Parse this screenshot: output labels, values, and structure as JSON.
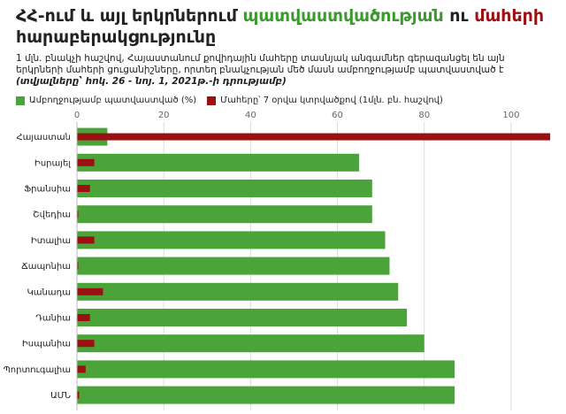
{
  "header": {
    "title_part1": "ՀՀ-ում և այլ երկրներում ",
    "title_green": "պատվաստվածության",
    "title_part2": " ու ",
    "title_red": "մահերի",
    "title_part3": "հարաբերակցությունը",
    "description": "1 մլն. բնակչի հաշվով, Հայաստանում քովիդային մահերը տասնյակ անգամներ գերազանցել են այն երկրների մահերի ցուցանիշները, որտեղ բնակչության մեծ մասն ամբողջությամբ պատվաստված է ",
    "source": "(տվյալները՝ հոկ. 26 - նոյ. 1, 2021թ.-ի դրությամբ)"
  },
  "colors": {
    "green": "#4aa439",
    "red": "#9b1010",
    "title_green": "#3a9a2e",
    "title_red": "#9b1010"
  },
  "chart_data": {
    "type": "bar",
    "orientation": "horizontal",
    "xlim": [
      0,
      110
    ],
    "ticks": [
      0,
      20,
      40,
      60,
      80,
      100
    ],
    "grid": true,
    "legend_position": "top-left",
    "categories": [
      "Հայաստան",
      "Իսրայել",
      "Ֆրանսիա",
      "Շվեդիա",
      "Իտալիա",
      "Ճապոնիա",
      "Կանադա",
      "Դանիա",
      "Իսպանիա",
      "Պորտուգալիա",
      "ԱՄՆ"
    ],
    "series": [
      {
        "name": "Ամբողջությամբ պատվաստված (%)",
        "color": "#4aa439",
        "values": [
          7,
          65,
          68,
          68,
          71,
          72,
          74,
          76,
          80,
          87,
          87
        ]
      },
      {
        "name": "Մահերը՝ 7 օրվա կտրվածքով (1մլն. բն. հաշվով)",
        "color": "#9b1010",
        "values": [
          109,
          4,
          3,
          0.3,
          4,
          0.3,
          6,
          3,
          4,
          2,
          0.5
        ]
      }
    ]
  }
}
